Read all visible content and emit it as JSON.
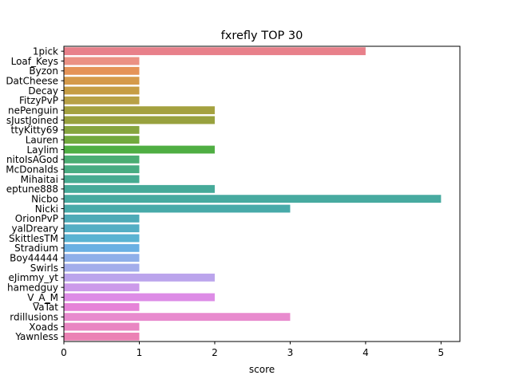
{
  "chart_data": {
    "type": "bar",
    "orientation": "horizontal",
    "title": "fxrefly TOP 30",
    "xlabel": "score",
    "ylabel": "",
    "xlim": [
      0,
      5.25
    ],
    "xticks": [
      0,
      1,
      2,
      3,
      4,
      5
    ],
    "grid": false,
    "categories": [
      "1pick",
      "Loaf_Keys",
      "Byzon",
      "DatCheese",
      "Decay",
      "FitzyPvP",
      "nePenguin",
      "sJustJoined",
      "ttyKitty69",
      "Lauren",
      "Laylim",
      "nitoIsAGod",
      "McDonalds",
      "Mihaitai",
      "eptune888",
      "Nicbo",
      "Nicki",
      "OrionPvP",
      "yalDreary",
      "SkittlesTM",
      "Stradium",
      "Boy44444",
      "Swirls",
      "eJimmy_yt",
      "hamedguy",
      "V_A_M",
      "VaTat",
      "rdillusions",
      "Xoads",
      "Yawnless"
    ],
    "values": [
      4,
      1,
      1,
      1,
      1,
      1,
      2,
      2,
      1,
      1,
      2,
      1,
      1,
      1,
      2,
      5,
      3,
      1,
      1,
      1,
      1,
      1,
      1,
      2,
      1,
      2,
      1,
      3,
      1,
      1
    ],
    "colors": [
      "#e8808a",
      "#eb9184",
      "#e59357",
      "#d59a4a",
      "#c69d44",
      "#b8a146",
      "#a4a13f",
      "#98a13e",
      "#86a53f",
      "#72a93e",
      "#4fae43",
      "#4bad73",
      "#48ac82",
      "#47ab91",
      "#46aa99",
      "#47aaa0",
      "#48aaa9",
      "#4eaab7",
      "#54aec4",
      "#5ab3d2",
      "#6ab0e3",
      "#8fafe9",
      "#a3adeb",
      "#bba4ec",
      "#cc9aea",
      "#dd8ce6",
      "#e683d8",
      "#e88bce",
      "#e986c2",
      "#eb81b4"
    ]
  }
}
